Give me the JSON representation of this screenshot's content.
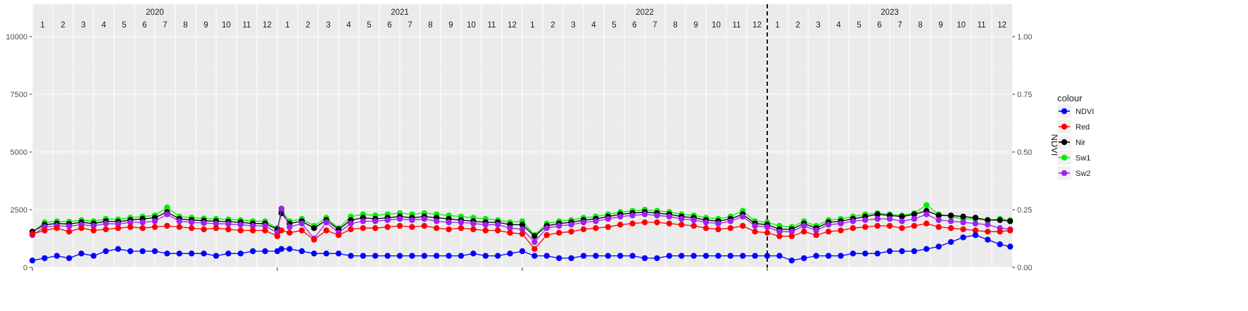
{
  "chart_data": {
    "type": "line",
    "xlabel": "",
    "ylabel": "",
    "y2label": "NDVI",
    "ylim": [
      0,
      10000
    ],
    "y2lim": [
      0,
      1
    ],
    "yticks": [
      "0",
      "2500",
      "5000",
      "7500",
      "10000"
    ],
    "y2ticks": [
      "0.00",
      "0.25",
      "0.50",
      "0.75",
      "1.00"
    ],
    "years": [
      "2020",
      "2021",
      "2022",
      "2023"
    ],
    "months": [
      "1",
      "2",
      "3",
      "4",
      "5",
      "6",
      "7",
      "8",
      "9",
      "10",
      "11",
      "12"
    ],
    "grid": true,
    "vline": {
      "position": "start of 2023",
      "style": "dashed",
      "color": "#000000"
    },
    "legend": {
      "title": "colour",
      "placement": "right",
      "entries": [
        "NDVI",
        "Red",
        "Nir",
        "Sw1",
        "Sw2"
      ]
    },
    "x_unit": "month index from Jan 2020 (0 = start of Jan 2020)",
    "series": [
      {
        "name": "Sw1",
        "axis": "left",
        "color": "#00ee00",
        "x": [
          0.0,
          0.6,
          1.2,
          1.8,
          2.4,
          3.0,
          3.6,
          4.2,
          4.8,
          5.4,
          6.0,
          6.6,
          7.2,
          7.8,
          8.4,
          9.0,
          9.6,
          10.2,
          10.8,
          11.4,
          12.0,
          12.2,
          12.6,
          13.2,
          13.8,
          14.4,
          15.0,
          15.6,
          16.2,
          16.8,
          17.4,
          18.0,
          18.6,
          19.2,
          19.8,
          20.4,
          21.0,
          21.6,
          22.2,
          22.8,
          23.4,
          24.0,
          24.6,
          25.2,
          25.8,
          26.4,
          27.0,
          27.6,
          28.2,
          28.8,
          29.4,
          30.0,
          30.6,
          31.2,
          31.8,
          32.4,
          33.0,
          33.6,
          34.2,
          34.8,
          35.4,
          36.0,
          36.6,
          37.2,
          37.8,
          38.4,
          39.0,
          39.6,
          40.2,
          40.8,
          41.4,
          42.0,
          42.6,
          43.2,
          43.8,
          44.4,
          45.0,
          45.6,
          46.2,
          46.8,
          47.4,
          47.9
        ],
        "values": [
          1500,
          1950,
          2000,
          1980,
          2050,
          2000,
          2100,
          2080,
          2150,
          2200,
          2250,
          2600,
          2200,
          2150,
          2120,
          2100,
          2080,
          2050,
          2000,
          2000,
          1700,
          2450,
          2000,
          2100,
          1800,
          2150,
          1700,
          2200,
          2300,
          2250,
          2300,
          2350,
          2300,
          2350,
          2300,
          2250,
          2200,
          2150,
          2100,
          2050,
          1950,
          2000,
          1400,
          1900,
          2000,
          2050,
          2150,
          2200,
          2300,
          2400,
          2450,
          2500,
          2450,
          2400,
          2300,
          2250,
          2150,
          2100,
          2200,
          2450,
          2000,
          1950,
          1800,
          1750,
          2000,
          1800,
          2050,
          2100,
          2200,
          2300,
          2350,
          2300,
          2250,
          2350,
          2700,
          2300,
          2200,
          2100,
          2100,
          2050,
          2100,
          2050
        ]
      },
      {
        "name": "Nir",
        "axis": "left",
        "color": "#000000",
        "x": [
          0.0,
          0.6,
          1.2,
          1.8,
          2.4,
          3.0,
          3.6,
          4.2,
          4.8,
          5.4,
          6.0,
          6.6,
          7.2,
          7.8,
          8.4,
          9.0,
          9.6,
          10.2,
          10.8,
          11.4,
          12.0,
          12.2,
          12.6,
          13.2,
          13.8,
          14.4,
          15.0,
          15.6,
          16.2,
          16.8,
          17.4,
          18.0,
          18.6,
          19.2,
          19.8,
          20.4,
          21.0,
          21.6,
          22.2,
          22.8,
          23.4,
          24.0,
          24.6,
          25.2,
          25.8,
          26.4,
          27.0,
          27.6,
          28.2,
          28.8,
          29.4,
          30.0,
          30.6,
          31.2,
          31.8,
          32.4,
          33.0,
          33.6,
          34.2,
          34.8,
          35.4,
          36.0,
          36.6,
          37.2,
          37.8,
          38.4,
          39.0,
          39.6,
          40.2,
          40.8,
          41.4,
          42.0,
          42.6,
          43.2,
          43.8,
          44.4,
          45.0,
          45.6,
          46.2,
          46.8,
          47.4,
          47.9
        ],
        "values": [
          1550,
          1850,
          1900,
          1880,
          1950,
          1900,
          2000,
          1980,
          2050,
          2100,
          2150,
          2400,
          2100,
          2050,
          2020,
          2000,
          1980,
          1950,
          1900,
          1900,
          1650,
          2350,
          1900,
          2000,
          1700,
          2050,
          1650,
          2050,
          2150,
          2100,
          2150,
          2200,
          2150,
          2200,
          2150,
          2100,
          2050,
          2000,
          1950,
          1950,
          1850,
          1850,
          1350,
          1800,
          1900,
          1950,
          2050,
          2100,
          2200,
          2300,
          2350,
          2400,
          2350,
          2300,
          2200,
          2150,
          2050,
          2000,
          2100,
          2300,
          1900,
          1850,
          1650,
          1650,
          1900,
          1700,
          1950,
          2000,
          2100,
          2200,
          2300,
          2250,
          2200,
          2300,
          2450,
          2250,
          2250,
          2200,
          2150,
          2050,
          2050,
          2000
        ]
      },
      {
        "name": "Sw2",
        "axis": "left",
        "color": "#a020f0",
        "x": [
          0.0,
          0.6,
          1.2,
          1.8,
          2.4,
          3.0,
          3.6,
          4.2,
          4.8,
          5.4,
          6.0,
          6.6,
          7.2,
          7.8,
          8.4,
          9.0,
          9.6,
          10.2,
          10.8,
          11.4,
          12.0,
          12.2,
          12.6,
          13.2,
          13.8,
          14.4,
          15.0,
          15.6,
          16.2,
          16.8,
          17.4,
          18.0,
          18.6,
          19.2,
          19.8,
          20.4,
          21.0,
          21.6,
          22.2,
          22.8,
          23.4,
          24.0,
          24.6,
          25.2,
          25.8,
          26.4,
          27.0,
          27.6,
          28.2,
          28.8,
          29.4,
          30.0,
          30.6,
          31.2,
          31.8,
          32.4,
          33.0,
          33.6,
          34.2,
          34.8,
          35.4,
          36.0,
          36.6,
          37.2,
          37.8,
          38.4,
          39.0,
          39.6,
          40.2,
          40.8,
          41.4,
          42.0,
          42.6,
          43.2,
          43.8,
          44.4,
          45.0,
          45.6,
          46.2,
          46.8,
          47.4,
          47.9
        ],
        "values": [
          1400,
          1750,
          1800,
          1780,
          1850,
          1800,
          1900,
          1880,
          1950,
          1950,
          2000,
          2300,
          2000,
          1950,
          1920,
          1900,
          1880,
          1850,
          1800,
          1800,
          1500,
          2550,
          1750,
          1900,
          1250,
          1950,
          1500,
          1900,
          2000,
          2000,
          2050,
          2100,
          2050,
          2100,
          2000,
          1950,
          1950,
          1900,
          1850,
          1850,
          1700,
          1650,
          1100,
          1700,
          1800,
          1850,
          1950,
          2000,
          2100,
          2200,
          2250,
          2300,
          2250,
          2200,
          2100,
          2050,
          1950,
          1900,
          2000,
          2200,
          1800,
          1750,
          1550,
          1550,
          1800,
          1600,
          1850,
          1900,
          2000,
          2050,
          2100,
          2100,
          2000,
          2100,
          2300,
          2050,
          2000,
          1950,
          1900,
          1850,
          1700,
          1650
        ]
      },
      {
        "name": "Red",
        "axis": "left",
        "color": "#ff0000",
        "x": [
          0.0,
          0.6,
          1.2,
          1.8,
          2.4,
          3.0,
          3.6,
          4.2,
          4.8,
          5.4,
          6.0,
          6.6,
          7.2,
          7.8,
          8.4,
          9.0,
          9.6,
          10.2,
          10.8,
          11.4,
          12.0,
          12.2,
          12.6,
          13.2,
          13.8,
          14.4,
          15.0,
          15.6,
          16.2,
          16.8,
          17.4,
          18.0,
          18.6,
          19.2,
          19.8,
          20.4,
          21.0,
          21.6,
          22.2,
          22.8,
          23.4,
          24.0,
          24.6,
          25.2,
          25.8,
          26.4,
          27.0,
          27.6,
          28.2,
          28.8,
          29.4,
          30.0,
          30.6,
          31.2,
          31.8,
          32.4,
          33.0,
          33.6,
          34.2,
          34.8,
          35.4,
          36.0,
          36.6,
          37.2,
          37.8,
          38.4,
          39.0,
          39.6,
          40.2,
          40.8,
          41.4,
          42.0,
          42.6,
          43.2,
          43.8,
          44.4,
          45.0,
          45.6,
          46.2,
          46.8,
          47.4,
          47.9
        ],
        "values": [
          1450,
          1600,
          1700,
          1550,
          1700,
          1600,
          1650,
          1700,
          1750,
          1700,
          1750,
          1800,
          1750,
          1700,
          1650,
          1700,
          1650,
          1600,
          1600,
          1600,
          1350,
          1600,
          1500,
          1600,
          1200,
          1600,
          1400,
          1650,
          1700,
          1700,
          1750,
          1800,
          1750,
          1800,
          1700,
          1650,
          1700,
          1650,
          1600,
          1600,
          1500,
          1450,
          800,
          1400,
          1500,
          1550,
          1650,
          1700,
          1750,
          1850,
          1900,
          1950,
          1950,
          1900,
          1850,
          1800,
          1700,
          1650,
          1700,
          1800,
          1550,
          1500,
          1350,
          1350,
          1550,
          1400,
          1550,
          1600,
          1700,
          1750,
          1800,
          1800,
          1700,
          1800,
          1900,
          1750,
          1700,
          1650,
          1600,
          1550,
          1550,
          1600
        ]
      },
      {
        "name": "NDVI",
        "axis": "right",
        "color": "#0000ff",
        "x": [
          0.0,
          0.6,
          1.2,
          1.8,
          2.4,
          3.0,
          3.6,
          4.2,
          4.8,
          5.4,
          6.0,
          6.6,
          7.2,
          7.8,
          8.4,
          9.0,
          9.6,
          10.2,
          10.8,
          11.4,
          12.0,
          12.2,
          12.6,
          13.2,
          13.8,
          14.4,
          15.0,
          15.6,
          16.2,
          16.8,
          17.4,
          18.0,
          18.6,
          19.2,
          19.8,
          20.4,
          21.0,
          21.6,
          22.2,
          22.8,
          23.4,
          24.0,
          24.6,
          25.2,
          25.8,
          26.4,
          27.0,
          27.6,
          28.2,
          28.8,
          29.4,
          30.0,
          30.6,
          31.2,
          31.8,
          32.4,
          33.0,
          33.6,
          34.2,
          34.8,
          35.4,
          36.0,
          36.6,
          37.2,
          37.8,
          38.4,
          39.0,
          39.6,
          40.2,
          40.8,
          41.4,
          42.0,
          42.6,
          43.2,
          43.8,
          44.4,
          45.0,
          45.6,
          46.2,
          46.8,
          47.4,
          47.9
        ],
        "values": [
          0.03,
          0.04,
          0.05,
          0.04,
          0.06,
          0.05,
          0.07,
          0.08,
          0.07,
          0.07,
          0.07,
          0.06,
          0.06,
          0.06,
          0.06,
          0.05,
          0.06,
          0.06,
          0.07,
          0.07,
          0.07,
          0.08,
          0.08,
          0.07,
          0.06,
          0.06,
          0.06,
          0.05,
          0.05,
          0.05,
          0.05,
          0.05,
          0.05,
          0.05,
          0.05,
          0.05,
          0.05,
          0.06,
          0.05,
          0.05,
          0.06,
          0.07,
          0.05,
          0.05,
          0.04,
          0.04,
          0.05,
          0.05,
          0.05,
          0.05,
          0.05,
          0.04,
          0.04,
          0.05,
          0.05,
          0.05,
          0.05,
          0.05,
          0.05,
          0.05,
          0.05,
          0.05,
          0.05,
          0.03,
          0.04,
          0.05,
          0.05,
          0.05,
          0.06,
          0.06,
          0.06,
          0.07,
          0.07,
          0.07,
          0.08,
          0.09,
          0.11,
          0.13,
          0.14,
          0.12,
          0.1,
          0.09
        ]
      }
    ]
  }
}
